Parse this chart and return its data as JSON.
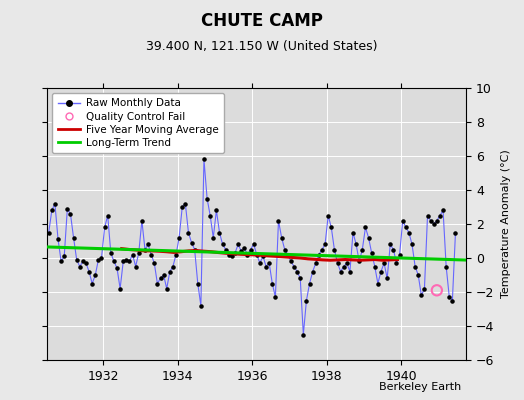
{
  "title": "CHUTE CAMP",
  "subtitle": "39.400 N, 121.150 W (United States)",
  "ylabel": "Temperature Anomaly (°C)",
  "credit": "Berkeley Earth",
  "ylim": [
    -6,
    10
  ],
  "yticks": [
    -6,
    -4,
    -2,
    0,
    2,
    4,
    6,
    8,
    10
  ],
  "x_start_year": 1930.5,
  "x_end_year": 1941.75,
  "xticks": [
    1932,
    1934,
    1936,
    1938,
    1940
  ],
  "bg_color": "#e8e8e8",
  "plot_bg_color": "#dcdcdc",
  "raw_line_color": "#6666ff",
  "raw_dot_color": "#000000",
  "moving_avg_color": "#cc0000",
  "trend_color": "#00cc00",
  "qc_fail_color": "#ff69b4",
  "legend_items": [
    {
      "label": "Raw Monthly Data",
      "color": "#6666ff",
      "type": "line_dot"
    },
    {
      "label": "Quality Control Fail",
      "color": "#ff69b4",
      "type": "circle"
    },
    {
      "label": "Five Year Moving Average",
      "color": "#cc0000",
      "type": "line"
    },
    {
      "label": "Long-Term Trend",
      "color": "#00cc00",
      "type": "line"
    }
  ],
  "raw_data": [
    [
      1930.542,
      1.5
    ],
    [
      1930.625,
      2.8
    ],
    [
      1930.708,
      3.2
    ],
    [
      1930.792,
      1.1
    ],
    [
      1930.875,
      -0.2
    ],
    [
      1930.958,
      0.1
    ],
    [
      1931.042,
      2.9
    ],
    [
      1931.125,
      2.6
    ],
    [
      1931.208,
      1.2
    ],
    [
      1931.292,
      -0.1
    ],
    [
      1931.375,
      -0.5
    ],
    [
      1931.458,
      -0.2
    ],
    [
      1931.542,
      -0.3
    ],
    [
      1931.625,
      -0.8
    ],
    [
      1931.708,
      -1.5
    ],
    [
      1931.792,
      -1.0
    ],
    [
      1931.875,
      -0.1
    ],
    [
      1931.958,
      0.0
    ],
    [
      1932.042,
      1.8
    ],
    [
      1932.125,
      2.5
    ],
    [
      1932.208,
      0.3
    ],
    [
      1932.292,
      -0.2
    ],
    [
      1932.375,
      -0.6
    ],
    [
      1932.458,
      -1.8
    ],
    [
      1932.542,
      -0.2
    ],
    [
      1932.625,
      -0.1
    ],
    [
      1932.708,
      -0.2
    ],
    [
      1932.792,
      0.2
    ],
    [
      1932.875,
      -0.5
    ],
    [
      1932.958,
      0.3
    ],
    [
      1933.042,
      2.2
    ],
    [
      1933.125,
      0.5
    ],
    [
      1933.208,
      0.8
    ],
    [
      1933.292,
      0.2
    ],
    [
      1933.375,
      -0.3
    ],
    [
      1933.458,
      -1.5
    ],
    [
      1933.542,
      -1.2
    ],
    [
      1933.625,
      -1.0
    ],
    [
      1933.708,
      -1.8
    ],
    [
      1933.792,
      -0.8
    ],
    [
      1933.875,
      -0.5
    ],
    [
      1933.958,
      0.2
    ],
    [
      1934.042,
      1.2
    ],
    [
      1934.125,
      3.0
    ],
    [
      1934.208,
      3.2
    ],
    [
      1934.292,
      1.5
    ],
    [
      1934.375,
      0.9
    ],
    [
      1934.458,
      0.5
    ],
    [
      1934.542,
      -1.5
    ],
    [
      1934.625,
      -2.8
    ],
    [
      1934.708,
      5.8
    ],
    [
      1934.792,
      3.5
    ],
    [
      1934.875,
      2.5
    ],
    [
      1934.958,
      1.2
    ],
    [
      1935.042,
      2.8
    ],
    [
      1935.125,
      1.5
    ],
    [
      1935.208,
      0.8
    ],
    [
      1935.292,
      0.5
    ],
    [
      1935.375,
      0.2
    ],
    [
      1935.458,
      0.1
    ],
    [
      1935.542,
      0.3
    ],
    [
      1935.625,
      0.8
    ],
    [
      1935.708,
      0.4
    ],
    [
      1935.792,
      0.6
    ],
    [
      1935.875,
      0.2
    ],
    [
      1935.958,
      0.5
    ],
    [
      1936.042,
      0.8
    ],
    [
      1936.125,
      0.2
    ],
    [
      1936.208,
      -0.3
    ],
    [
      1936.292,
      0.1
    ],
    [
      1936.375,
      -0.5
    ],
    [
      1936.458,
      -0.3
    ],
    [
      1936.542,
      -1.5
    ],
    [
      1936.625,
      -2.3
    ],
    [
      1936.708,
      2.2
    ],
    [
      1936.792,
      1.2
    ],
    [
      1936.875,
      0.5
    ],
    [
      1936.958,
      0.2
    ],
    [
      1937.042,
      -0.2
    ],
    [
      1937.125,
      -0.5
    ],
    [
      1937.208,
      -0.8
    ],
    [
      1937.292,
      -1.2
    ],
    [
      1937.375,
      -4.5
    ],
    [
      1937.458,
      -2.5
    ],
    [
      1937.542,
      -1.5
    ],
    [
      1937.625,
      -0.8
    ],
    [
      1937.708,
      -0.3
    ],
    [
      1937.792,
      0.2
    ],
    [
      1937.875,
      0.5
    ],
    [
      1937.958,
      0.8
    ],
    [
      1938.042,
      2.5
    ],
    [
      1938.125,
      1.8
    ],
    [
      1938.208,
      0.5
    ],
    [
      1938.292,
      -0.3
    ],
    [
      1938.375,
      -0.8
    ],
    [
      1938.458,
      -0.5
    ],
    [
      1938.542,
      -0.3
    ],
    [
      1938.625,
      -0.8
    ],
    [
      1938.708,
      1.5
    ],
    [
      1938.792,
      0.8
    ],
    [
      1938.875,
      -0.2
    ],
    [
      1938.958,
      0.5
    ],
    [
      1939.042,
      1.8
    ],
    [
      1939.125,
      1.2
    ],
    [
      1939.208,
      0.3
    ],
    [
      1939.292,
      -0.5
    ],
    [
      1939.375,
      -1.5
    ],
    [
      1939.458,
      -0.8
    ],
    [
      1939.542,
      -0.3
    ],
    [
      1939.625,
      -1.2
    ],
    [
      1939.708,
      0.8
    ],
    [
      1939.792,
      0.5
    ],
    [
      1939.875,
      -0.3
    ],
    [
      1939.958,
      0.2
    ],
    [
      1940.042,
      2.2
    ],
    [
      1940.125,
      1.8
    ],
    [
      1940.208,
      1.5
    ],
    [
      1940.292,
      0.8
    ],
    [
      1940.375,
      -0.5
    ],
    [
      1940.458,
      -1.0
    ],
    [
      1940.542,
      -2.2
    ],
    [
      1940.625,
      -1.8
    ],
    [
      1940.708,
      2.5
    ],
    [
      1940.792,
      2.2
    ],
    [
      1940.875,
      2.0
    ],
    [
      1940.958,
      2.2
    ],
    [
      1941.042,
      2.5
    ],
    [
      1941.125,
      2.8
    ],
    [
      1941.208,
      -0.5
    ],
    [
      1941.292,
      -2.3
    ],
    [
      1941.375,
      -2.5
    ],
    [
      1941.458,
      1.5
    ]
  ],
  "moving_avg_data": [
    [
      1932.5,
      0.55
    ],
    [
      1932.7,
      0.5
    ],
    [
      1932.9,
      0.47
    ],
    [
      1933.1,
      0.42
    ],
    [
      1933.3,
      0.42
    ],
    [
      1933.5,
      0.4
    ],
    [
      1933.7,
      0.37
    ],
    [
      1933.9,
      0.33
    ],
    [
      1934.1,
      0.37
    ],
    [
      1934.3,
      0.42
    ],
    [
      1934.5,
      0.44
    ],
    [
      1934.7,
      0.4
    ],
    [
      1934.9,
      0.37
    ],
    [
      1935.1,
      0.32
    ],
    [
      1935.3,
      0.28
    ],
    [
      1935.5,
      0.25
    ],
    [
      1935.7,
      0.22
    ],
    [
      1935.9,
      0.2
    ],
    [
      1936.1,
      0.18
    ],
    [
      1936.3,
      0.15
    ],
    [
      1936.5,
      0.12
    ],
    [
      1936.7,
      0.09
    ],
    [
      1936.9,
      0.06
    ],
    [
      1937.1,
      0.03
    ],
    [
      1937.3,
      0.0
    ],
    [
      1937.5,
      -0.05
    ],
    [
      1937.7,
      -0.08
    ],
    [
      1937.9,
      -0.11
    ],
    [
      1938.1,
      -0.13
    ],
    [
      1938.3,
      -0.11
    ],
    [
      1938.5,
      -0.09
    ],
    [
      1938.7,
      -0.11
    ],
    [
      1938.9,
      -0.13
    ],
    [
      1939.1,
      -0.11
    ],
    [
      1939.3,
      -0.09
    ],
    [
      1939.5,
      -0.13
    ],
    [
      1939.7,
      -0.11
    ],
    [
      1939.9,
      -0.09
    ]
  ],
  "trend_data": [
    [
      1930.5,
      0.65
    ],
    [
      1941.75,
      -0.12
    ]
  ],
  "qc_fail_points": [
    [
      1940.958,
      -1.9
    ]
  ]
}
